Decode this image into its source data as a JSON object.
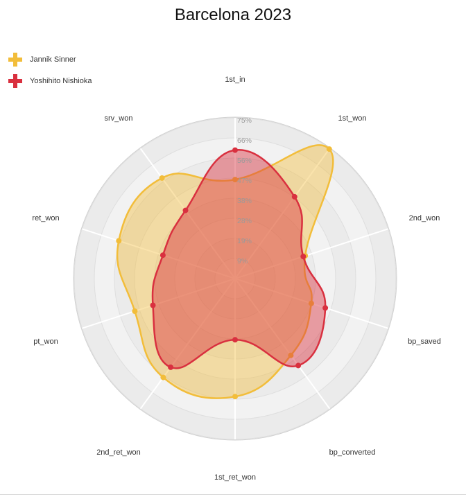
{
  "chart_data": {
    "type": "radar",
    "title": "Barcelona 2023",
    "axes": [
      "1st_in",
      "1st_won",
      "2nd_won",
      "bp_saved",
      "bp_converted",
      "1st_ret_won",
      "2nd_ret_won",
      "pt_won",
      "ret_won",
      "srv_won"
    ],
    "ticks": [
      "9%",
      "19%",
      "28%",
      "38%",
      "47%",
      "56%",
      "66%",
      "75%"
    ],
    "range": [
      0,
      75
    ],
    "legend_position": "top-left",
    "series": [
      {
        "name": "Jannik Sinner",
        "color": "#f2bd3a",
        "values": [
          47,
          76,
          35,
          38,
          45,
          56,
          58,
          50,
          58,
          59
        ]
      },
      {
        "name": "Yoshihito Nishioka",
        "color": "#d9303f",
        "values": [
          61,
          48,
          34,
          45,
          51,
          29,
          52,
          41,
          36,
          40
        ]
      }
    ]
  }
}
